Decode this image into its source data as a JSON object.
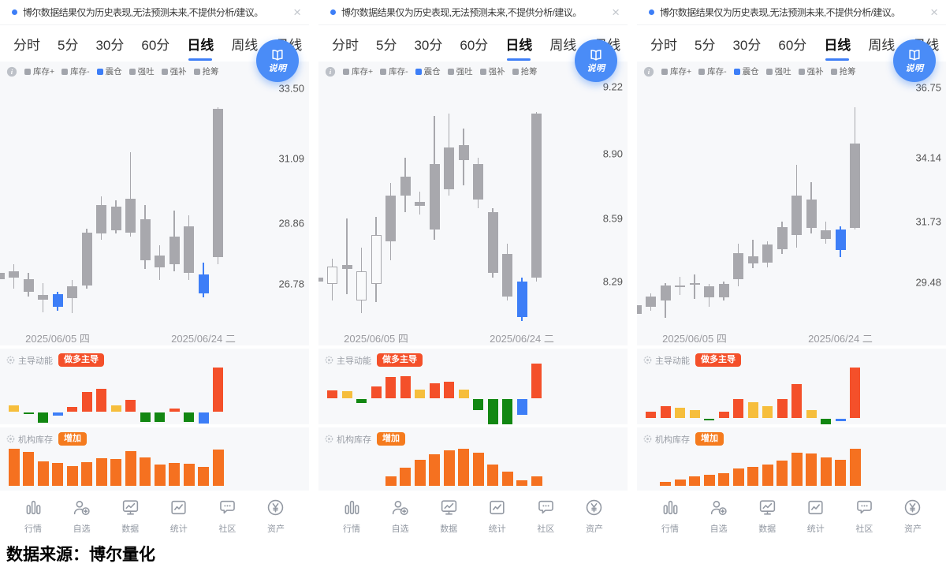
{
  "colors": {
    "accent_blue": "#3D7EF7",
    "candle_gray": "#A8A8AD",
    "bar_red": "#F4502A",
    "bar_yellow": "#F6BE3C",
    "bar_green": "#128712",
    "bar_blue": "#3D7EF7",
    "bar_orange": "#F57120",
    "badge_red": "#F4502A",
    "badge_orange": "#F57B1E",
    "card_bg": "#F7F8FA"
  },
  "common": {
    "banner_text": "博尔数据结果仅为历史表现,无法预测未来,不提供分析/建议。",
    "close_glyph": "×",
    "tabs": [
      {
        "key": "fenshi",
        "label": "分时",
        "active": false
      },
      {
        "key": "5min",
        "label": "5分",
        "active": false
      },
      {
        "key": "30min",
        "label": "30分",
        "active": false
      },
      {
        "key": "60min",
        "label": "60分",
        "active": false
      },
      {
        "key": "daily",
        "label": "日线",
        "active": true
      },
      {
        "key": "weekly",
        "label": "周线",
        "active": false
      },
      {
        "key": "monthly",
        "label": "月线",
        "active": false
      }
    ],
    "legend": [
      {
        "label": "库存+",
        "color": "#A2A5AC"
      },
      {
        "label": "库存-",
        "color": "#A2A5AC"
      },
      {
        "label": "震仓",
        "color": "#3D7EF7"
      },
      {
        "label": "强吐",
        "color": "#A2A5AC"
      },
      {
        "label": "强补",
        "color": "#A2A5AC"
      },
      {
        "label": "抢筹",
        "color": "#A2A5AC"
      }
    ],
    "explain_label": "说明",
    "dates": [
      "2025/06/05 四",
      "2025/06/24 二"
    ],
    "momentum_label": "主导动能",
    "inventory_label": "机构库存",
    "nav": [
      {
        "label": "行情",
        "icon": "market-icon"
      },
      {
        "label": "自选",
        "icon": "watchlist-icon"
      },
      {
        "label": "数据",
        "icon": "data-icon"
      },
      {
        "label": "统计",
        "icon": "stats-icon"
      },
      {
        "label": "社区",
        "icon": "community-icon"
      },
      {
        "label": "资产",
        "icon": "assets-icon"
      }
    ],
    "footer": "数据来源：博尔量化"
  },
  "panels": [
    {
      "ylim": [
        25.2,
        34.0
      ],
      "yticks": [
        {
          "v": 33.5,
          "label": "33.50"
        },
        {
          "v": 31.09,
          "label": "31.09"
        },
        {
          "v": 28.86,
          "label": "28.86"
        },
        {
          "v": 26.78,
          "label": "26.78"
        }
      ],
      "candles": [
        {
          "o": 27.15,
          "c": 26.95,
          "h": 27.2,
          "l": 26.8,
          "t": "gray"
        },
        {
          "o": 27.2,
          "c": 27.0,
          "h": 27.45,
          "l": 26.6,
          "t": "gray"
        },
        {
          "o": 26.95,
          "c": 26.5,
          "h": 27.15,
          "l": 26.35,
          "t": "gray"
        },
        {
          "o": 26.4,
          "c": 26.22,
          "h": 26.8,
          "l": 25.8,
          "t": "gray"
        },
        {
          "o": 26.42,
          "c": 26.0,
          "h": 26.5,
          "l": 25.85,
          "t": "blue"
        },
        {
          "o": 26.7,
          "c": 26.28,
          "h": 26.9,
          "l": 25.78,
          "t": "gray"
        },
        {
          "o": 26.72,
          "c": 28.55,
          "h": 28.68,
          "l": 26.6,
          "t": "gray"
        },
        {
          "o": 28.5,
          "c": 29.5,
          "h": 29.8,
          "l": 28.3,
          "t": "gray"
        },
        {
          "o": 28.62,
          "c": 29.45,
          "h": 29.65,
          "l": 28.5,
          "t": "gray"
        },
        {
          "o": 28.55,
          "c": 29.7,
          "h": 31.3,
          "l": 28.4,
          "t": "gray"
        },
        {
          "o": 27.6,
          "c": 29.0,
          "h": 29.5,
          "l": 27.3,
          "t": "gray"
        },
        {
          "o": 27.35,
          "c": 27.75,
          "h": 28.1,
          "l": 26.9,
          "t": "gray"
        },
        {
          "o": 27.45,
          "c": 28.4,
          "h": 29.3,
          "l": 27.2,
          "t": "gray"
        },
        {
          "o": 27.15,
          "c": 28.75,
          "h": 29.15,
          "l": 26.9,
          "t": "gray"
        },
        {
          "o": 26.45,
          "c": 27.1,
          "h": 27.5,
          "l": 26.3,
          "t": "blue"
        },
        {
          "o": 27.7,
          "c": 32.8,
          "h": 32.85,
          "l": 27.45,
          "t": "gray"
        }
      ],
      "momentum": {
        "badge": "做多主导",
        "baseline": 80,
        "bars": [
          {
            "v": 8,
            "color": "yellow"
          },
          {
            "v": -2,
            "color": "green"
          },
          {
            "v": -13,
            "color": "green"
          },
          {
            "v": -4,
            "color": "blue"
          },
          {
            "v": 6,
            "color": "red"
          },
          {
            "v": 25,
            "color": "red"
          },
          {
            "v": 29,
            "color": "red"
          },
          {
            "v": 8,
            "color": "yellow"
          },
          {
            "v": 15,
            "color": "red"
          },
          {
            "v": -12,
            "color": "green"
          },
          {
            "v": -12,
            "color": "green"
          },
          {
            "v": 4,
            "color": "red"
          },
          {
            "v": -12,
            "color": "green"
          },
          {
            "v": -14,
            "color": "blue"
          },
          {
            "v": 56,
            "color": "red"
          }
        ]
      },
      "inventory": {
        "badge": "增加",
        "baseline": 74,
        "bars": [
          47,
          43,
          31,
          29,
          25,
          30,
          35,
          34,
          44,
          36,
          27,
          29,
          28,
          24,
          46
        ]
      }
    },
    {
      "ylim": [
        8.06,
        9.28
      ],
      "yticks": [
        {
          "v": 9.22,
          "label": "9.22"
        },
        {
          "v": 8.9,
          "label": "8.90"
        },
        {
          "v": 8.59,
          "label": "8.59"
        },
        {
          "v": 8.29,
          "label": "8.29"
        }
      ],
      "candles": [
        {
          "o": 8.31,
          "c": 8.29,
          "h": 8.4,
          "l": 8.22,
          "t": "gray"
        },
        {
          "o": 8.28,
          "c": 8.36,
          "h": 8.4,
          "l": 8.2,
          "t": "hollow"
        },
        {
          "o": 8.37,
          "c": 8.35,
          "h": 8.59,
          "l": 8.23,
          "t": "gray"
        },
        {
          "o": 8.2,
          "c": 8.34,
          "h": 8.45,
          "l": 8.14,
          "t": "hollow"
        },
        {
          "o": 8.28,
          "c": 8.51,
          "h": 8.6,
          "l": 8.19,
          "t": "hollow"
        },
        {
          "o": 8.48,
          "c": 8.7,
          "h": 8.76,
          "l": 8.39,
          "t": "gray"
        },
        {
          "o": 8.7,
          "c": 8.79,
          "h": 8.88,
          "l": 8.62,
          "t": "gray"
        },
        {
          "o": 8.67,
          "c": 8.65,
          "h": 8.72,
          "l": 8.61,
          "t": "gray"
        },
        {
          "o": 8.54,
          "c": 8.85,
          "h": 9.08,
          "l": 8.49,
          "t": "gray"
        },
        {
          "o": 8.73,
          "c": 8.93,
          "h": 9.09,
          "l": 8.7,
          "t": "gray"
        },
        {
          "o": 8.87,
          "c": 8.94,
          "h": 9.02,
          "l": 8.75,
          "t": "gray"
        },
        {
          "o": 8.85,
          "c": 8.68,
          "h": 8.88,
          "l": 8.64,
          "t": "gray"
        },
        {
          "o": 8.62,
          "c": 8.33,
          "h": 8.64,
          "l": 8.31,
          "t": "gray"
        },
        {
          "o": 8.42,
          "c": 8.22,
          "h": 8.47,
          "l": 8.2,
          "t": "gray"
        },
        {
          "o": 8.29,
          "c": 8.12,
          "h": 8.31,
          "l": 8.1,
          "t": "blue"
        },
        {
          "o": 8.31,
          "c": 9.09,
          "h": 9.1,
          "l": 8.29,
          "t": "gray"
        }
      ],
      "momentum": {
        "badge": "做多主导",
        "baseline": 63,
        "bars": [
          {
            "v": 10,
            "color": "red"
          },
          {
            "v": 9,
            "color": "yellow"
          },
          {
            "v": -5,
            "color": "green"
          },
          {
            "v": 15,
            "color": "red"
          },
          {
            "v": 27,
            "color": "red"
          },
          {
            "v": 28,
            "color": "red"
          },
          {
            "v": 11,
            "color": "yellow"
          },
          {
            "v": 19,
            "color": "red"
          },
          {
            "v": 21,
            "color": "red"
          },
          {
            "v": 11,
            "color": "yellow"
          },
          {
            "v": -14,
            "color": "green"
          },
          {
            "v": -32,
            "color": "green"
          },
          {
            "v": -32,
            "color": "green"
          },
          {
            "v": -20,
            "color": "blue"
          },
          {
            "v": 44,
            "color": "red"
          }
        ]
      },
      "inventory": {
        "badge": "增加",
        "baseline": 74,
        "bars": [
          0,
          0,
          0,
          0,
          12,
          23,
          33,
          40,
          45,
          47,
          42,
          27,
          18,
          7,
          12
        ]
      }
    },
    {
      "ylim": [
        27.7,
        37.25
      ],
      "yticks": [
        {
          "v": 36.75,
          "label": "36.75"
        },
        {
          "v": 34.14,
          "label": "34.14"
        },
        {
          "v": 31.73,
          "label": "31.73"
        },
        {
          "v": 29.48,
          "label": "29.48"
        }
      ],
      "candles": [
        {
          "o": 28.6,
          "c": 28.3,
          "h": 28.7,
          "l": 28.2,
          "t": "gray"
        },
        {
          "o": 28.55,
          "c": 28.95,
          "h": 29.05,
          "l": 28.4,
          "t": "gray"
        },
        {
          "o": 28.8,
          "c": 29.35,
          "h": 29.45,
          "l": 28.15,
          "t": "gray"
        },
        {
          "o": 29.35,
          "c": 29.32,
          "h": 29.67,
          "l": 29.0,
          "t": "gray"
        },
        {
          "o": 29.44,
          "c": 29.41,
          "h": 29.75,
          "l": 28.85,
          "t": "gray"
        },
        {
          "o": 29.32,
          "c": 28.9,
          "h": 29.4,
          "l": 28.55,
          "t": "gray"
        },
        {
          "o": 28.9,
          "c": 29.4,
          "h": 29.5,
          "l": 28.8,
          "t": "gray"
        },
        {
          "o": 29.58,
          "c": 30.55,
          "h": 30.9,
          "l": 29.32,
          "t": "gray"
        },
        {
          "o": 30.17,
          "c": 30.45,
          "h": 31.05,
          "l": 30.0,
          "t": "gray"
        },
        {
          "o": 30.22,
          "c": 30.88,
          "h": 31.0,
          "l": 30.02,
          "t": "gray"
        },
        {
          "o": 30.7,
          "c": 31.52,
          "h": 31.73,
          "l": 30.52,
          "t": "gray"
        },
        {
          "o": 31.25,
          "c": 32.7,
          "h": 33.85,
          "l": 30.76,
          "t": "gray"
        },
        {
          "o": 31.5,
          "c": 32.55,
          "h": 33.2,
          "l": 31.3,
          "t": "gray"
        },
        {
          "o": 31.4,
          "c": 31.1,
          "h": 31.75,
          "l": 30.9,
          "t": "gray"
        },
        {
          "o": 31.45,
          "c": 30.67,
          "h": 31.55,
          "l": 30.42,
          "t": "blue"
        },
        {
          "o": 31.5,
          "c": 34.65,
          "h": 36.0,
          "l": 31.45,
          "t": "gray"
        }
      ],
      "momentum": {
        "badge": "做多主导",
        "baseline": 88,
        "bars": [
          {
            "v": 8,
            "color": "red"
          },
          {
            "v": 15,
            "color": "red"
          },
          {
            "v": 13,
            "color": "yellow"
          },
          {
            "v": 10,
            "color": "yellow"
          },
          {
            "v": -2,
            "color": "green"
          },
          {
            "v": 8,
            "color": "red"
          },
          {
            "v": 24,
            "color": "red"
          },
          {
            "v": 20,
            "color": "yellow"
          },
          {
            "v": 15,
            "color": "yellow"
          },
          {
            "v": 24,
            "color": "red"
          },
          {
            "v": 43,
            "color": "red"
          },
          {
            "v": 10,
            "color": "yellow"
          },
          {
            "v": -8,
            "color": "green"
          },
          {
            "v": -3,
            "color": "blue"
          },
          {
            "v": 64,
            "color": "red"
          }
        ]
      },
      "inventory": {
        "badge": "增加",
        "baseline": 74,
        "bars": [
          0,
          5,
          8,
          12,
          14,
          16,
          22,
          24,
          27,
          32,
          42,
          41,
          36,
          33,
          47
        ]
      }
    }
  ]
}
